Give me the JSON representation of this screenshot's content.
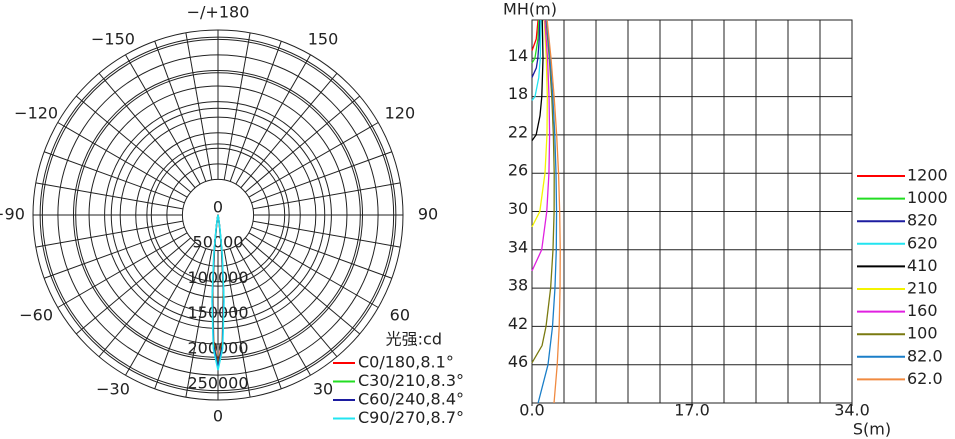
{
  "chart_data": [
    {
      "type": "polar",
      "angle_ticks": [
        {
          "value": 180,
          "label": "−/+180"
        },
        {
          "value": -150,
          "label": "−150"
        },
        150,
        {
          "value": -120,
          "label": "−120"
        },
        120,
        {
          "value": -90,
          "label": "−90"
        },
        90,
        {
          "value": -60,
          "label": "−60"
        },
        60,
        {
          "value": -30,
          "label": "−30"
        },
        30,
        0
      ],
      "rlim": [
        0,
        260000
      ],
      "rticks": [
        0,
        50000,
        100000,
        150000,
        200000,
        250000
      ],
      "legend_title": "光强:cd",
      "x": [
        -12,
        -10,
        -8,
        -6,
        -4,
        -2,
        0,
        2,
        4,
        6,
        8,
        10,
        12
      ],
      "series": [
        {
          "name": "C0/180,8.1°",
          "color": "#ff0000",
          "values": [
            500,
            3000,
            14000,
            46000,
            107000,
            177000,
            210000,
            177000,
            107000,
            46000,
            14000,
            3000,
            500
          ]
        },
        {
          "name": "C30/210,8.3°",
          "color": "#22dd22",
          "values": [
            600,
            3800,
            16000,
            50000,
            111000,
            180000,
            212000,
            180000,
            111000,
            50000,
            16000,
            3800,
            600
          ]
        },
        {
          "name": "C60/240,8.4°",
          "color": "#1c1ca0",
          "values": [
            700,
            4200,
            17000,
            52000,
            114000,
            183000,
            214000,
            183000,
            114000,
            52000,
            17000,
            4200,
            700
          ]
        },
        {
          "name": "C90/270,8.7°",
          "color": "#22e4f0",
          "values": [
            1100,
            5600,
            21000,
            58000,
            121000,
            188000,
            218000,
            188000,
            121000,
            58000,
            21000,
            5600,
            1100
          ]
        }
      ]
    },
    {
      "type": "line",
      "ylabel": "MH(m)",
      "xlabel": "S(m)",
      "xlim": [
        0,
        34
      ],
      "xticks": [
        {
          "value": 0,
          "label": "0.0"
        },
        {
          "value": 17,
          "label": "17.0"
        },
        {
          "value": 34,
          "label": "34.0"
        }
      ],
      "ylim": [
        10,
        50
      ],
      "yticks": [
        14,
        18,
        22,
        26,
        30,
        34,
        38,
        42,
        46
      ],
      "y_inverted": true,
      "grid": true,
      "series": [
        {
          "name": "1200",
          "color": "#ff0000",
          "x": [
            0.64,
            0.45,
            0
          ],
          "values": [
            10,
            12,
            13.2
          ]
        },
        {
          "name": "1000",
          "color": "#22dd22",
          "x": [
            0.73,
            0.63,
            0.31,
            0
          ],
          "values": [
            10,
            12,
            14,
            14.5
          ]
        },
        {
          "name": "820",
          "color": "#1c1ca0",
          "x": [
            0.83,
            0.77,
            0.62,
            0.46,
            0
          ],
          "values": [
            10,
            12,
            14,
            15,
            16
          ]
        },
        {
          "name": "620",
          "color": "#22e4f0",
          "x": [
            0.94,
            0.88,
            0.72,
            0.32,
            0
          ],
          "values": [
            10,
            14,
            16,
            18,
            18.4
          ]
        },
        {
          "name": "410",
          "color": "#000000",
          "x": [
            1.09,
            1.17,
            1.04,
            0.85,
            0.44,
            0
          ],
          "values": [
            10,
            14,
            18,
            20,
            22,
            22.6
          ]
        },
        {
          "name": "210",
          "color": "#f4f400",
          "x": [
            1.3,
            1.52,
            1.63,
            1.59,
            1.38,
            0.83,
            0
          ],
          "values": [
            10,
            14,
            18,
            22,
            26,
            30,
            31.6
          ]
        },
        {
          "name": "160",
          "color": "#e020e0",
          "x": [
            1.37,
            1.65,
            1.81,
            1.87,
            1.8,
            1.57,
            1.03,
            0
          ],
          "values": [
            10,
            14,
            18,
            22,
            26,
            30,
            34,
            36.2
          ]
        },
        {
          "name": "100",
          "color": "#7a7a10",
          "x": [
            1.49,
            1.84,
            2.1,
            2.27,
            2.36,
            2.35,
            2.23,
            1.98,
            1.49,
            1.07,
            0
          ],
          "values": [
            10,
            14,
            18,
            22,
            26,
            30,
            34,
            38,
            42,
            44,
            45.8
          ]
        },
        {
          "name": "82.0",
          "color": "#1a7ec8",
          "x": [
            1.54,
            1.92,
            2.21,
            2.42,
            2.55,
            2.61,
            2.58,
            2.44,
            2.18,
            1.7,
            0.65
          ],
          "values": [
            10,
            14,
            18,
            22,
            26,
            30,
            34,
            38,
            42,
            46,
            50
          ]
        },
        {
          "name": "62.0",
          "color": "#f08a40",
          "x": [
            1.61,
            2.02,
            2.35,
            2.62,
            2.82,
            2.94,
            3.0,
            2.98,
            2.89,
            2.68,
            2.34
          ],
          "values": [
            10,
            14,
            18,
            22,
            26,
            30,
            34,
            38,
            42,
            46,
            50
          ]
        }
      ]
    }
  ]
}
